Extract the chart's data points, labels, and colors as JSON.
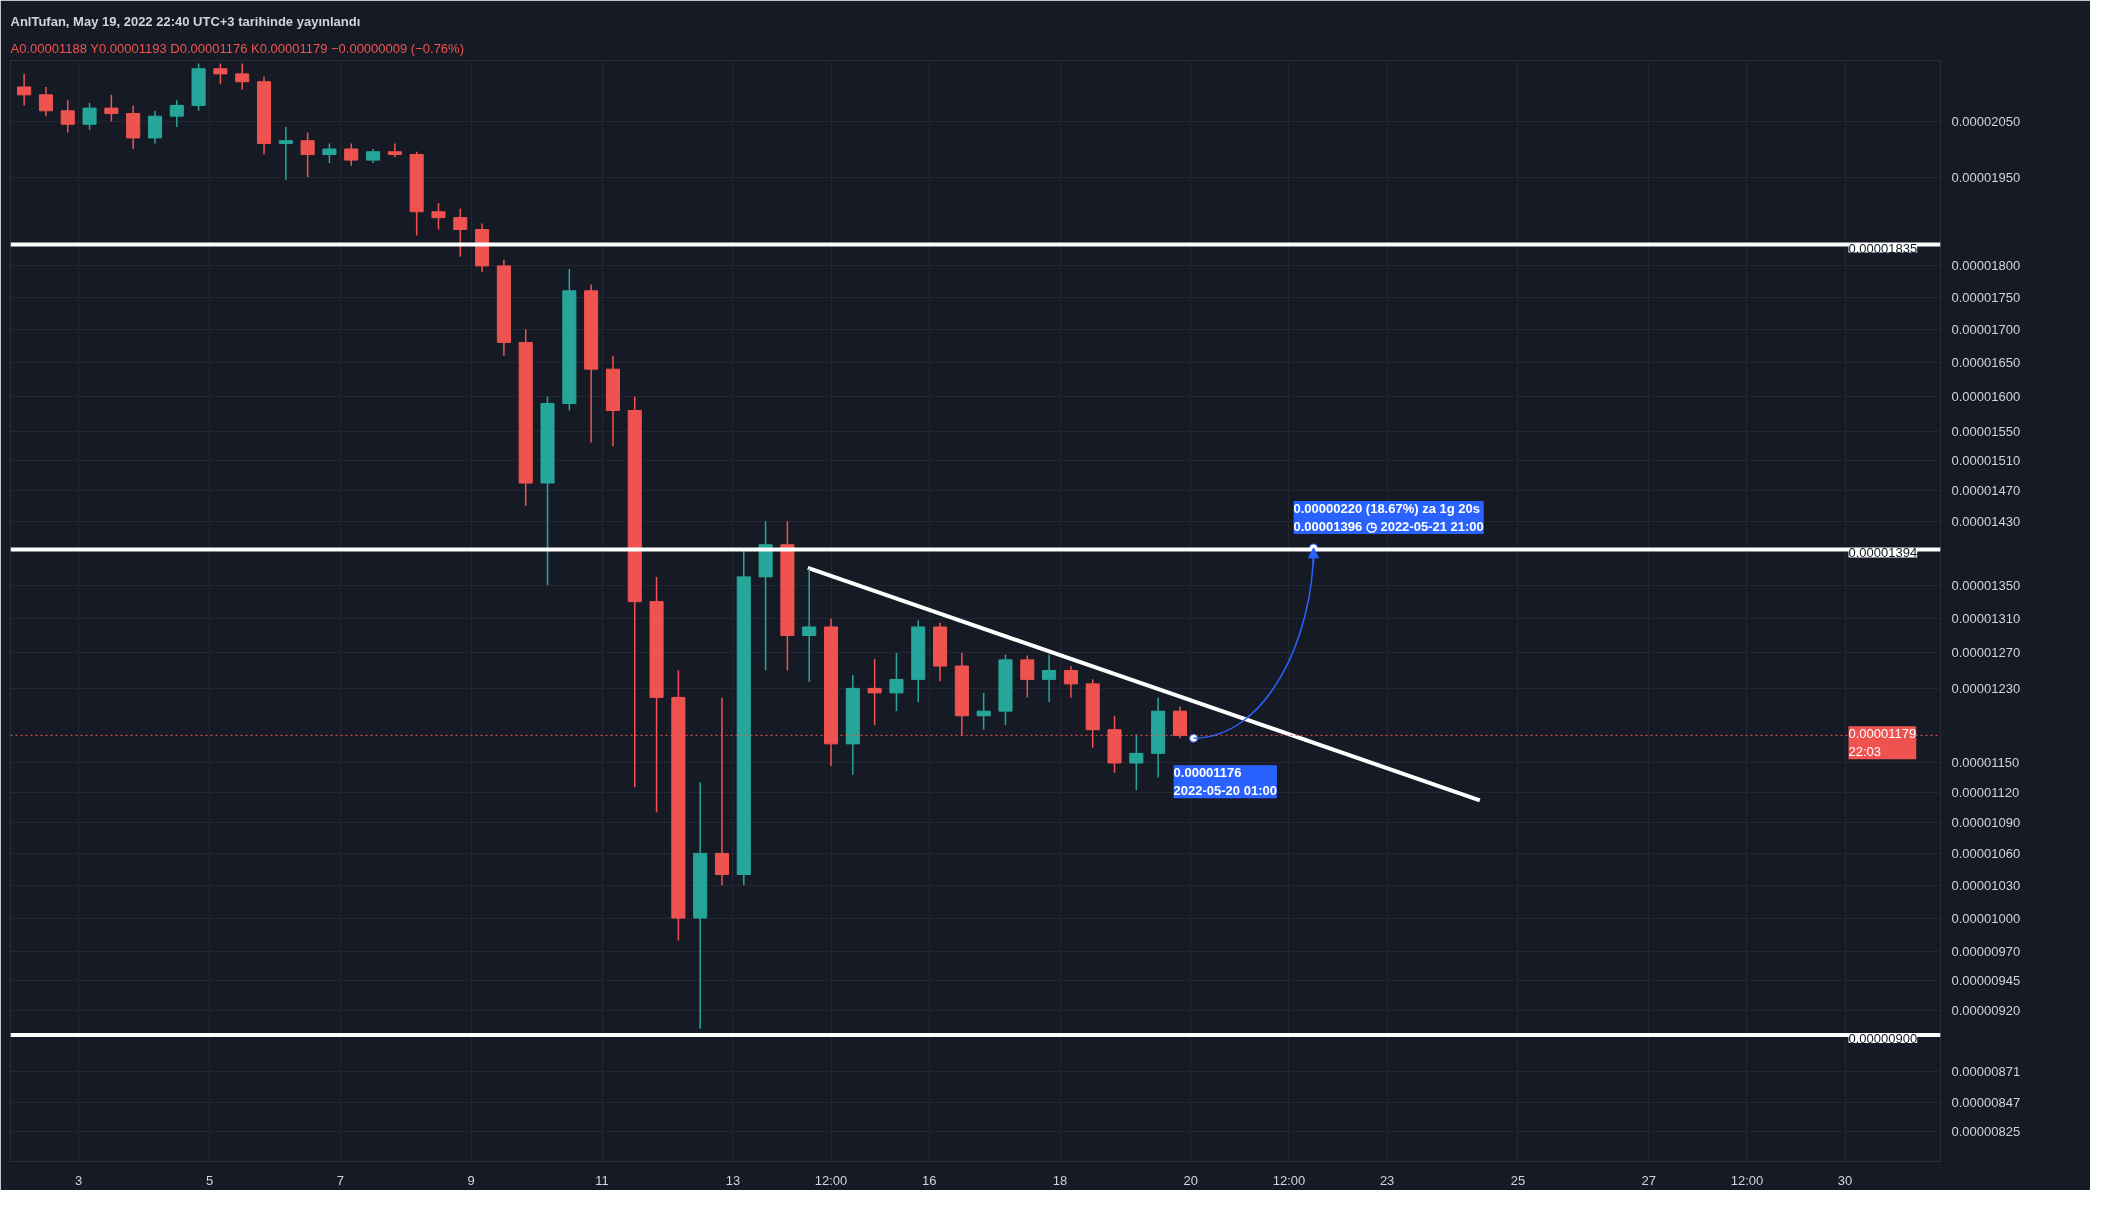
{
  "chart_data": {
    "type": "candlestick",
    "title": "AnlTufan, May 19, 2022 22:40 UTC+3 tarihinde yayınlandı",
    "x": [
      "2022-05-02T04:00",
      "2022-05-02T12:00",
      "2022-05-02T20:00",
      "2022-05-03T04:00",
      "2022-05-03T12:00",
      "2022-05-03T20:00",
      "2022-05-04T04:00",
      "2022-05-04T12:00",
      "2022-05-04T20:00",
      "2022-05-05T04:00",
      "2022-05-05T12:00",
      "2022-05-05T20:00",
      "2022-05-06T04:00",
      "2022-05-06T12:00",
      "2022-05-06T20:00",
      "2022-05-07T04:00",
      "2022-05-07T12:00",
      "2022-05-07T20:00",
      "2022-05-08T04:00",
      "2022-05-08T12:00",
      "2022-05-08T20:00",
      "2022-05-09T04:00",
      "2022-05-09T12:00",
      "2022-05-09T20:00",
      "2022-05-10T04:00",
      "2022-05-10T12:00",
      "2022-05-10T20:00",
      "2022-05-11T04:00",
      "2022-05-11T12:00",
      "2022-05-11T20:00",
      "2022-05-12T04:00",
      "2022-05-12T12:00",
      "2022-05-12T20:00",
      "2022-05-13T04:00",
      "2022-05-13T12:00",
      "2022-05-13T20:00",
      "2022-05-14T04:00",
      "2022-05-14T12:00",
      "2022-05-14T20:00",
      "2022-05-15T04:00",
      "2022-05-15T12:00",
      "2022-05-15T20:00",
      "2022-05-16T04:00",
      "2022-05-16T12:00",
      "2022-05-16T20:00",
      "2022-05-17T04:00",
      "2022-05-17T12:00",
      "2022-05-17T20:00",
      "2022-05-18T04:00",
      "2022-05-18T12:00",
      "2022-05-18T20:00",
      "2022-05-19T04:00",
      "2022-05-19T12:00",
      "2022-05-19T20:00"
    ],
    "ohlc": [
      [
        2.115e-05,
        2.14e-05,
        2.08e-05,
        2.1e-05
      ],
      [
        2.1e-05,
        2.115e-05,
        2.06e-05,
        2.07e-05
      ],
      [
        2.07e-05,
        2.09e-05,
        2.03e-05,
        2.045e-05
      ],
      [
        2.045e-05,
        2.085e-05,
        2.035e-05,
        2.075e-05
      ],
      [
        2.075e-05,
        2.1e-05,
        2.05e-05,
        2.065e-05
      ],
      [
        2.065e-05,
        2.08e-05,
        2e-05,
        2.02e-05
      ],
      [
        2.02e-05,
        2.07e-05,
        2.01e-05,
        2.06e-05
      ],
      [
        2.06e-05,
        2.09e-05,
        2.04e-05,
        2.08e-05
      ],
      [
        2.08e-05,
        2.16e-05,
        2.07e-05,
        2.15e-05
      ],
      [
        2.15e-05,
        2.16e-05,
        2.12e-05,
        2.14e-05
      ],
      [
        2.14e-05,
        2.16e-05,
        2.11e-05,
        2.125e-05
      ],
      [
        2.125e-05,
        2.135e-05,
        1.99e-05,
        2.01e-05
      ],
      [
        2.01e-05,
        2.04e-05,
        1.945e-05,
        2.015e-05
      ],
      [
        2.015e-05,
        2.03e-05,
        1.95e-05,
        1.99e-05
      ],
      [
        1.99e-05,
        2.01e-05,
        1.975e-05,
        2e-05
      ],
      [
        2e-05,
        2.01e-05,
        1.97e-05,
        1.98e-05
      ],
      [
        1.98e-05,
        2e-05,
        1.975e-05,
        1.995e-05
      ],
      [
        1.995e-05,
        2.01e-05,
        1.985e-05,
        1.99e-05
      ],
      [
        1.99e-05,
        1.995e-05,
        1.85e-05,
        1.89e-05
      ],
      [
        1.89e-05,
        1.905e-05,
        1.86e-05,
        1.88e-05
      ],
      [
        1.88e-05,
        1.895e-05,
        1.815e-05,
        1.86e-05
      ],
      [
        1.86e-05,
        1.87e-05,
        1.79e-05,
        1.8e-05
      ],
      [
        1.8e-05,
        1.81e-05,
        1.66e-05,
        1.68e-05
      ],
      [
        1.68e-05,
        1.7e-05,
        1.45e-05,
        1.48e-05
      ],
      [
        1.48e-05,
        1.6e-05,
        1.35e-05,
        1.59e-05
      ],
      [
        1.59e-05,
        1.795e-05,
        1.58e-05,
        1.76e-05
      ],
      [
        1.76e-05,
        1.77e-05,
        1.535e-05,
        1.64e-05
      ],
      [
        1.64e-05,
        1.66e-05,
        1.53e-05,
        1.58e-05
      ],
      [
        1.58e-05,
        1.6e-05,
        1.125e-05,
        1.33e-05
      ],
      [
        1.33e-05,
        1.36e-05,
        1.1e-05,
        1.22e-05
      ],
      [
        1.22e-05,
        1.25e-05,
        9.8e-06,
        1e-05
      ],
      [
        1e-05,
        1.13e-05,
        9.05e-06,
        1.06e-05
      ],
      [
        1.06e-05,
        1.22e-05,
        1.03e-05,
        1.04e-05
      ],
      [
        1.04e-05,
        1.395e-05,
        1.03e-05,
        1.36e-05
      ],
      [
        1.36e-05,
        1.43e-05,
        1.25e-05,
        1.4e-05
      ],
      [
        1.4e-05,
        1.43e-05,
        1.25e-05,
        1.29e-05
      ],
      [
        1.29e-05,
        1.37e-05,
        1.237e-05,
        1.3e-05
      ],
      [
        1.3e-05,
        1.31e-05,
        1.147e-05,
        1.17e-05
      ],
      [
        1.17e-05,
        1.245e-05,
        1.138e-05,
        1.23e-05
      ],
      [
        1.23e-05,
        1.263e-05,
        1.19e-05,
        1.225e-05
      ],
      [
        1.225e-05,
        1.27e-05,
        1.205e-05,
        1.24e-05
      ],
      [
        1.24e-05,
        1.308e-05,
        1.215e-05,
        1.3e-05
      ],
      [
        1.3e-05,
        1.305e-05,
        1.238e-05,
        1.255e-05
      ],
      [
        1.255e-05,
        1.27e-05,
        1.178e-05,
        1.2e-05
      ],
      [
        1.2e-05,
        1.225e-05,
        1.185e-05,
        1.205e-05
      ],
      [
        1.205e-05,
        1.268e-05,
        1.19e-05,
        1.262e-05
      ],
      [
        1.262e-05,
        1.267e-05,
        1.22e-05,
        1.24e-05
      ],
      [
        1.24e-05,
        1.268e-05,
        1.215e-05,
        1.25e-05
      ],
      [
        1.25e-05,
        1.255e-05,
        1.22e-05,
        1.235e-05
      ],
      [
        1.235e-05,
        1.24e-05,
        1.166e-05,
        1.185e-05
      ],
      [
        1.185e-05,
        1.2e-05,
        1.14e-05,
        1.15e-05
      ],
      [
        1.15e-05,
        1.18e-05,
        1.122e-05,
        1.16e-05
      ],
      [
        1.16e-05,
        1.22e-05,
        1.135e-05,
        1.205e-05
      ],
      [
        1.205e-05,
        1.21e-05,
        1.176e-05,
        1.179e-05
      ]
    ],
    "colors": [
      "#ef5350",
      "#ef5350",
      "#ef5350",
      "#26a69a",
      "#ef5350",
      "#ef5350",
      "#26a69a",
      "#26a69a",
      "#26a69a",
      "#ef5350",
      "#ef5350",
      "#ef5350",
      "#26a69a",
      "#ef5350",
      "#26a69a",
      "#ef5350",
      "#26a69a",
      "#ef5350",
      "#ef5350",
      "#ef5350",
      "#ef5350",
      "#ef5350",
      "#ef5350",
      "#ef5350",
      "#26a69a",
      "#26a69a",
      "#ef5350",
      "#ef5350",
      "#ef5350",
      "#ef5350",
      "#ef5350",
      "#26a69a",
      "#ef5350",
      "#26a69a",
      "#26a69a",
      "#ef5350",
      "#26a69a",
      "#ef5350",
      "#26a69a",
      "#ef5350",
      "#26a69a",
      "#26a69a",
      "#ef5350",
      "#ef5350",
      "#26a69a",
      "#26a69a",
      "#ef5350",
      "#26a69a",
      "#ef5350",
      "#ef5350",
      "#ef5350",
      "#26a69a",
      "#26a69a",
      "#ef5350"
    ],
    "series": [
      {
        "type": "line",
        "color": "#ffffff",
        "x": [
          "2022-05-14T03:30",
          "2022-05-24T10:00"
        ],
        "values": [
          1.371e-05,
          1.112e-05
        ]
      }
    ],
    "log": true,
    "grid": true,
    "xlim": [
      "2022-05-01T23:00",
      "2022-05-31T11:00"
    ],
    "xticks": [
      {
        "value": "2022-05-03",
        "label": "3"
      },
      {
        "value": "2022-05-05",
        "label": "5"
      },
      {
        "value": "2022-05-07",
        "label": "7"
      },
      {
        "value": "2022-05-09",
        "label": "9"
      },
      {
        "value": "2022-05-11",
        "label": "11"
      },
      {
        "value": "2022-05-13",
        "label": "13"
      },
      {
        "value": "2022-05-14T12:00",
        "label": "12:00"
      },
      {
        "value": "2022-05-16",
        "label": "16"
      },
      {
        "value": "2022-05-18",
        "label": "18"
      },
      {
        "value": "2022-05-20",
        "label": "20"
      },
      {
        "value": "2022-05-21T12:00",
        "label": "12:00"
      },
      {
        "value": "2022-05-23",
        "label": "23"
      },
      {
        "value": "2022-05-25",
        "label": "25"
      },
      {
        "value": "2022-05-27",
        "label": "27"
      },
      {
        "value": "2022-05-28T12:00",
        "label": "12:00"
      },
      {
        "value": "2022-05-30",
        "label": "30"
      }
    ],
    "ylim": [
      8.03e-06,
      2.166e-05
    ],
    "yticks": [
      {
        "value": 2.05e-05,
        "label": "0.00002050"
      },
      {
        "value": 1.95e-05,
        "label": "0.00001950"
      },
      {
        "value": 1.8e-05,
        "label": "0.00001800"
      },
      {
        "value": 1.75e-05,
        "label": "0.00001750"
      },
      {
        "value": 1.7e-05,
        "label": "0.00001700"
      },
      {
        "value": 1.65e-05,
        "label": "0.00001650"
      },
      {
        "value": 1.6e-05,
        "label": "0.00001600"
      },
      {
        "value": 1.55e-05,
        "label": "0.00001550"
      },
      {
        "value": 1.51e-05,
        "label": "0.00001510"
      },
      {
        "value": 1.47e-05,
        "label": "0.00001470"
      },
      {
        "value": 1.43e-05,
        "label": "0.00001430"
      },
      {
        "value": 1.35e-05,
        "label": "0.00001350"
      },
      {
        "value": 1.31e-05,
        "label": "0.00001310"
      },
      {
        "value": 1.27e-05,
        "label": "0.00001270"
      },
      {
        "value": 1.23e-05,
        "label": "0.00001230"
      },
      {
        "value": 1.15e-05,
        "label": "0.00001150"
      },
      {
        "value": 1.12e-05,
        "label": "0.00001120"
      },
      {
        "value": 1.09e-05,
        "label": "0.00001090"
      },
      {
        "value": 1.06e-05,
        "label": "0.00001060"
      },
      {
        "value": 1.03e-05,
        "label": "0.00001030"
      },
      {
        "value": 1e-05,
        "label": "0.00001000"
      },
      {
        "value": 9.7e-06,
        "label": "0.00000970"
      },
      {
        "value": 9.45e-06,
        "label": "0.00000945"
      },
      {
        "value": 9.2e-06,
        "label": "0.00000920"
      },
      {
        "value": 8.71e-06,
        "label": "0.00000871"
      },
      {
        "value": 8.47e-06,
        "label": "0.00000847"
      },
      {
        "value": 8.25e-06,
        "label": "0.00000825"
      }
    ],
    "ref_lines": [
      {
        "axis": "y",
        "value": 1.835e-05,
        "label": "0.00001835",
        "color": "#ffffff",
        "line_style": "solid"
      },
      {
        "axis": "y",
        "value": 1.394e-05,
        "label": "0.00001394",
        "color": "#ffffff",
        "line_style": "solid"
      },
      {
        "axis": "y",
        "value": 9e-06,
        "label": "0.00000900",
        "color": "#ffffff",
        "line_style": "solid"
      },
      {
        "axis": "y",
        "value": 1.179e-05,
        "label": "0.00001179\n22:03",
        "color": "#ef5350",
        "line_style": "dotted"
      }
    ],
    "annotations": [
      "A0.00001188 Y0.00001193 D0.00001176 K0.00001179 −0.00000009 (−0.76%)",
      {
        "text": "0.00001176\n2022-05-20 01:00",
        "x": "2022-05-20T01:00",
        "y": 1.176e-05
      },
      {
        "text": "0.00000220 (18.67%) za 1g 20s\n0.00001396 ◷ 2022-05-21 21:00",
        "x": "2022-05-21T21:00",
        "y": 1.396e-05
      }
    ]
  }
}
